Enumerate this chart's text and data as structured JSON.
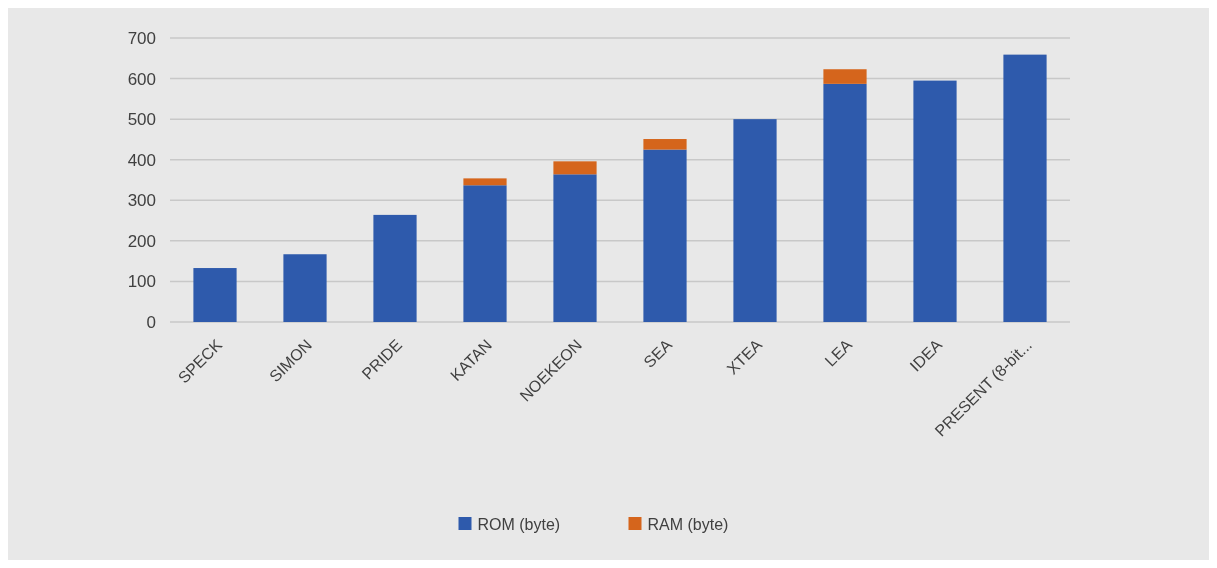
{
  "chart_data": {
    "type": "bar",
    "stacked": true,
    "categories": [
      "SPECK",
      "SIMON",
      "PRIDE",
      "KATAN",
      "NOEKEON",
      "SEA",
      "XTEA",
      "LEA",
      "IDEA",
      "PRESENT (8-bit..."
    ],
    "series": [
      {
        "name": "ROM (byte)",
        "color": "#2e5aac",
        "values": [
          133,
          167,
          264,
          337,
          364,
          425,
          500,
          587,
          595,
          659
        ]
      },
      {
        "name": "RAM (byte)",
        "color": "#d5651c",
        "values": [
          0,
          0,
          0,
          17,
          32,
          26,
          0,
          36,
          0,
          0
        ]
      }
    ],
    "ylim": [
      0,
      700
    ],
    "yticks": [
      0,
      100,
      200,
      300,
      400,
      500,
      600,
      700
    ],
    "grid": "y",
    "legend": "bottom"
  }
}
